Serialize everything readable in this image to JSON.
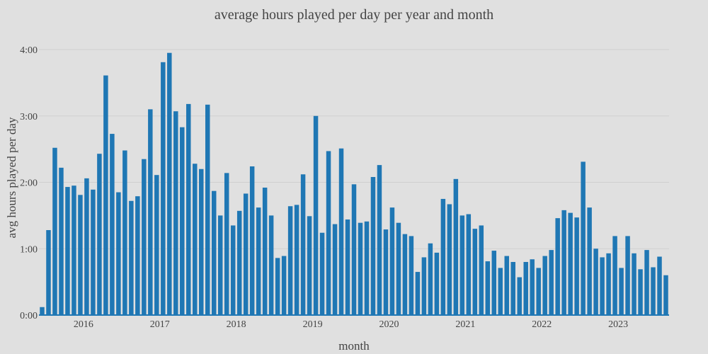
{
  "chart_data": {
    "type": "bar",
    "title": "average hours played per day per year and month",
    "xlabel": "month",
    "ylabel": "avg hours played per day",
    "bar_color": "#1f77b4",
    "background": "#e0e0e0",
    "grid": true,
    "legend": "none",
    "ylim": [
      0,
      4.2
    ],
    "y_ticks": [
      0,
      1,
      2,
      3,
      4
    ],
    "y_tick_labels": [
      "0:00",
      "1:00",
      "2:00",
      "3:00",
      "4:00"
    ],
    "x_ticks": [
      "2016-01",
      "2017-01",
      "2018-01",
      "2019-01",
      "2020-01",
      "2021-01",
      "2022-01",
      "2023-01"
    ],
    "x_tick_labels": [
      "2016",
      "2017",
      "2018",
      "2019",
      "2020",
      "2021",
      "2022",
      "2023"
    ],
    "categories": [
      "2015-06",
      "2015-07",
      "2015-08",
      "2015-09",
      "2015-10",
      "2015-11",
      "2015-12",
      "2016-01",
      "2016-02",
      "2016-03",
      "2016-04",
      "2016-05",
      "2016-06",
      "2016-07",
      "2016-08",
      "2016-09",
      "2016-10",
      "2016-11",
      "2016-12",
      "2017-01",
      "2017-02",
      "2017-03",
      "2017-04",
      "2017-05",
      "2017-06",
      "2017-07",
      "2017-08",
      "2017-09",
      "2017-10",
      "2017-11",
      "2017-12",
      "2018-01",
      "2018-02",
      "2018-03",
      "2018-04",
      "2018-05",
      "2018-06",
      "2018-07",
      "2018-08",
      "2018-09",
      "2018-10",
      "2018-11",
      "2018-12",
      "2019-01",
      "2019-02",
      "2019-03",
      "2019-04",
      "2019-05",
      "2019-06",
      "2019-07",
      "2019-08",
      "2019-09",
      "2019-10",
      "2019-11",
      "2019-12",
      "2020-01",
      "2020-02",
      "2020-03",
      "2020-04",
      "2020-05",
      "2020-06",
      "2020-07",
      "2020-08",
      "2020-09",
      "2020-10",
      "2020-11",
      "2020-12",
      "2021-01",
      "2021-02",
      "2021-03",
      "2021-04",
      "2021-05",
      "2021-06",
      "2021-07",
      "2021-08",
      "2021-09",
      "2021-10",
      "2021-11",
      "2021-12",
      "2022-01",
      "2022-02",
      "2022-03",
      "2022-04",
      "2022-05",
      "2022-06",
      "2022-07",
      "2022-08",
      "2022-09",
      "2022-10",
      "2022-11",
      "2022-12",
      "2023-01",
      "2023-02",
      "2023-03",
      "2023-04",
      "2023-05",
      "2023-06",
      "2023-07",
      "2023-08"
    ],
    "values": [
      0.12,
      1.28,
      2.52,
      2.22,
      1.93,
      1.95,
      1.81,
      2.06,
      1.89,
      2.43,
      3.61,
      2.73,
      1.85,
      2.48,
      1.72,
      1.79,
      2.35,
      3.1,
      2.11,
      3.81,
      3.95,
      3.07,
      2.83,
      3.18,
      2.28,
      2.2,
      3.17,
      1.87,
      1.5,
      2.14,
      1.35,
      1.57,
      1.83,
      2.24,
      1.62,
      1.92,
      1.5,
      0.86,
      0.89,
      1.64,
      1.66,
      2.12,
      1.49,
      3.0,
      1.24,
      2.47,
      1.37,
      2.51,
      1.44,
      1.97,
      1.39,
      1.41,
      2.08,
      2.26,
      1.29,
      1.62,
      1.39,
      1.22,
      1.19,
      0.65,
      0.87,
      1.08,
      0.94,
      1.75,
      1.67,
      2.05,
      1.5,
      1.52,
      1.3,
      1.35,
      0.81,
      0.97,
      0.71,
      0.89,
      0.8,
      0.57,
      0.8,
      0.84,
      0.71,
      0.89,
      0.98,
      1.46,
      1.58,
      1.54,
      1.47,
      2.31,
      1.62,
      1.0,
      0.87,
      0.93,
      1.19,
      0.71,
      1.19,
      0.93,
      0.69,
      0.98,
      0.72,
      0.88,
      0.6
    ]
  }
}
